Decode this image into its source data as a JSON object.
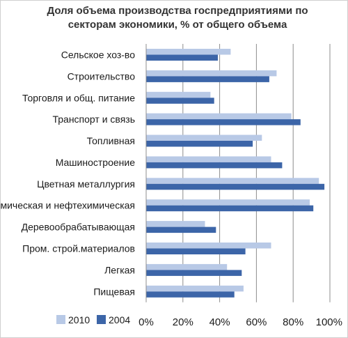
{
  "chart_data": {
    "type": "bar",
    "orientation": "horizontal",
    "title": "Доля объема производства госпредприятиями по секторам экономики, % от общего объема",
    "title_lines": [
      "Доля объема производства госпредприятиями по",
      "секторам экономики, % от общего объема"
    ],
    "categories": [
      "Сельское хоз-во",
      "Строительство",
      "Торговля и общ. питание",
      "Транспорт и связь",
      "Топливная",
      "Машиностроение",
      "Цветная металлургия",
      "Химическая и нефтехимическая",
      "Деревообрабатывающая",
      "Пром. строй.материалов",
      "Легкая",
      "Пищевая"
    ],
    "series": [
      {
        "name": "2010",
        "color": "#b8c9e6",
        "values": [
          46,
          71,
          35,
          79,
          63,
          68,
          94,
          89,
          32,
          68,
          44,
          53
        ]
      },
      {
        "name": "2004",
        "color": "#3c65a8",
        "values": [
          39,
          67,
          37,
          84,
          58,
          74,
          97,
          91,
          38,
          54,
          52,
          48
        ]
      }
    ],
    "xlim": [
      0,
      100
    ],
    "x_ticks": [
      "0%",
      "20%",
      "40%",
      "60%",
      "80%",
      "100%"
    ],
    "grid": true,
    "legend_position": "bottom-left"
  }
}
